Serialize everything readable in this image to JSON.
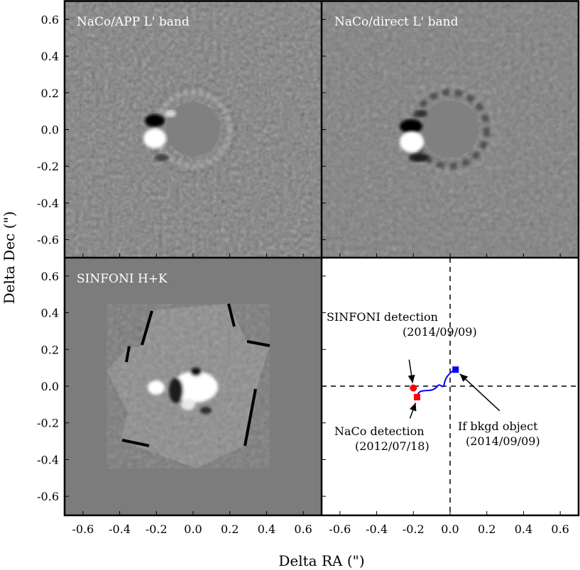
{
  "chart_data": {
    "type": "image-grid",
    "xlabel": "Delta RA (\")",
    "ylabel": "Delta Dec (\")",
    "xlim": [
      -0.7,
      0.7
    ],
    "ylim": [
      -0.7,
      0.7
    ],
    "x_ticks": [
      "-0.6",
      "-0.4",
      "-0.2",
      "0.0",
      "0.2",
      "0.4",
      "0.6"
    ],
    "y_ticks": [
      "0.6",
      "0.4",
      "0.2",
      "0.0",
      "-0.2",
      "-0.4",
      "-0.6"
    ],
    "panels": [
      {
        "title": "NaCo/APP L' band",
        "kind": "image",
        "coronagraph_mask_radius": 0.15,
        "companion": {
          "x": -0.2,
          "y": -0.04
        }
      },
      {
        "title": "NaCo/direct L' band",
        "kind": "image",
        "coronagraph_mask_radius": 0.15,
        "companion": {
          "x": -0.2,
          "y": -0.04
        }
      },
      {
        "title": "SINFONI H+K",
        "kind": "image"
      },
      {
        "title": "",
        "kind": "astrometry",
        "reference_lines": {
          "x": 0.0,
          "y": 0.0
        },
        "points": [
          {
            "name": "SINFONI detection",
            "date": "(2014/09/09)",
            "x": -0.2,
            "y": -0.01,
            "marker": "circle",
            "color": "#ff0000"
          },
          {
            "name": "NaCo detection",
            "date": "(2012/07/18)",
            "x": -0.18,
            "y": -0.06,
            "marker": "square",
            "color": "#ff0000"
          },
          {
            "name": "If bkgd object",
            "date": "(2014/09/09)",
            "x": 0.03,
            "y": 0.09,
            "marker": "square",
            "color": "#0000ff"
          }
        ],
        "track_color": "#0000ff"
      }
    ]
  }
}
